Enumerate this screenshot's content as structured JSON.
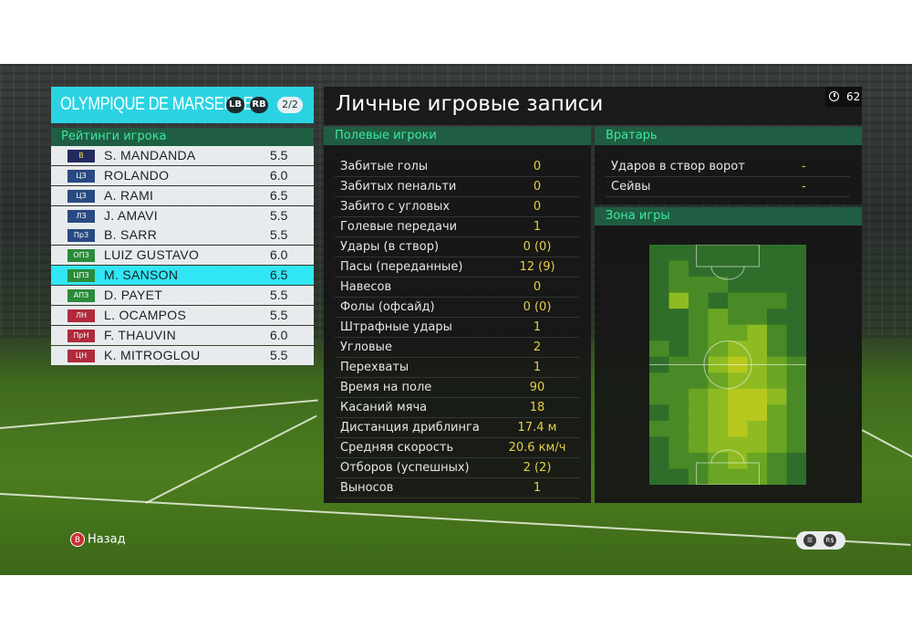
{
  "team": {
    "name": "OLYMPIQUE DE MARSEILLE",
    "pill_lb": "LB",
    "pill_rb": "RB",
    "page": "2/2"
  },
  "ratings": {
    "header": "Рейтинги игрока",
    "players": [
      {
        "pos": "В",
        "name": "S. MANDANDA",
        "rating": "5.5",
        "color": "#222b5e",
        "text": "#f0e040"
      },
      {
        "pos": "ЦЗ",
        "name": "ROLANDO",
        "rating": "6.0",
        "color": "#284a80",
        "text": "#ffffff"
      },
      {
        "pos": "ЦЗ",
        "name": "A. RAMI",
        "rating": "6.5",
        "color": "#284a80",
        "text": "#ffffff"
      },
      {
        "pos": "ЛЗ",
        "name": "J. AMAVI",
        "rating": "5.5",
        "color": "#284a80",
        "text": "#ffffff"
      },
      {
        "pos": "ПрЗ",
        "name": "B. SARR",
        "rating": "5.5",
        "color": "#284a80",
        "text": "#ffffff"
      },
      {
        "pos": "ОПЗ",
        "name": "LUIZ GUSTAVO",
        "rating": "6.0",
        "color": "#2a8a3a",
        "text": "#ffffff"
      },
      {
        "pos": "ЦПЗ",
        "name": "M. SANSON",
        "rating": "6.5",
        "color": "#2a8a3a",
        "text": "#ffffff",
        "selected": true
      },
      {
        "pos": "АПЗ",
        "name": "D. PAYET",
        "rating": "5.5",
        "color": "#2a8a3a",
        "text": "#ffffff"
      },
      {
        "pos": "ЛН",
        "name": "L. OCAMPOS",
        "rating": "5.5",
        "color": "#b02a3a",
        "text": "#ffffff"
      },
      {
        "pos": "ПрН",
        "name": "F. THAUVIN",
        "rating": "6.0",
        "color": "#b02a3a",
        "text": "#ffffff"
      },
      {
        "pos": "ЦН",
        "name": "K. MITROGLOU",
        "rating": "5.5",
        "color": "#b02a3a",
        "text": "#ffffff"
      }
    ]
  },
  "main": {
    "title": "Личные игровые записи",
    "timer": "62"
  },
  "field": {
    "header": "Полевые игроки",
    "stats": [
      {
        "label": "Забитые голы",
        "value": "0"
      },
      {
        "label": "Забитых пенальти",
        "value": "0"
      },
      {
        "label": "Забито с угловых",
        "value": "0"
      },
      {
        "label": "Голевые передачи",
        "value": "1"
      },
      {
        "label": "Удары (в створ)",
        "value": "0 (0)"
      },
      {
        "label": "Пасы (переданные)",
        "value": "12 (9)"
      },
      {
        "label": "Навесов",
        "value": "0"
      },
      {
        "label": "Фолы (офсайд)",
        "value": "0 (0)"
      },
      {
        "label": "Штрафные удары",
        "value": "1"
      },
      {
        "label": "Угловые",
        "value": "2"
      },
      {
        "label": "Перехваты",
        "value": "1"
      },
      {
        "label": "Время на поле",
        "value": "90"
      },
      {
        "label": "Касаний мяча",
        "value": "18"
      },
      {
        "label": "Дистанция дриблинга",
        "value": "17.4 м"
      },
      {
        "label": "Средняя скорость",
        "value": "20.6 км/ч"
      },
      {
        "label": "Отборов (успешных)",
        "value": "2 (2)"
      },
      {
        "label": "Выносов",
        "value": "1"
      }
    ]
  },
  "goalkeeper": {
    "header": "Вратарь",
    "stats": [
      {
        "label": "Ударов в створ ворот",
        "value": "-"
      },
      {
        "label": "Сейвы",
        "value": "-"
      }
    ]
  },
  "zone": {
    "header": "Зона игры",
    "heat": [
      [
        0,
        0,
        0,
        0,
        0,
        0,
        0,
        0
      ],
      [
        0,
        1,
        0,
        0,
        0,
        0,
        0,
        0
      ],
      [
        0,
        1,
        1,
        1,
        0,
        0,
        0,
        0
      ],
      [
        0,
        3,
        1,
        0,
        1,
        1,
        1,
        0
      ],
      [
        0,
        0,
        1,
        2,
        1,
        1,
        0,
        0
      ],
      [
        0,
        0,
        1,
        2,
        2,
        3,
        1,
        0
      ],
      [
        1,
        0,
        1,
        2,
        3,
        3,
        1,
        0
      ],
      [
        0,
        1,
        1,
        3,
        4,
        3,
        2,
        1
      ],
      [
        1,
        1,
        1,
        2,
        3,
        3,
        2,
        1
      ],
      [
        1,
        1,
        2,
        3,
        4,
        4,
        3,
        1
      ],
      [
        0,
        1,
        2,
        3,
        4,
        4,
        2,
        1
      ],
      [
        1,
        1,
        2,
        3,
        4,
        3,
        2,
        1
      ],
      [
        0,
        1,
        2,
        3,
        3,
        3,
        2,
        1
      ],
      [
        0,
        1,
        1,
        2,
        3,
        2,
        1,
        0
      ],
      [
        0,
        0,
        1,
        2,
        2,
        2,
        1,
        0
      ]
    ]
  },
  "footer": {
    "back_key": "B",
    "back_label": "Назад",
    "hud_right": "R$"
  }
}
